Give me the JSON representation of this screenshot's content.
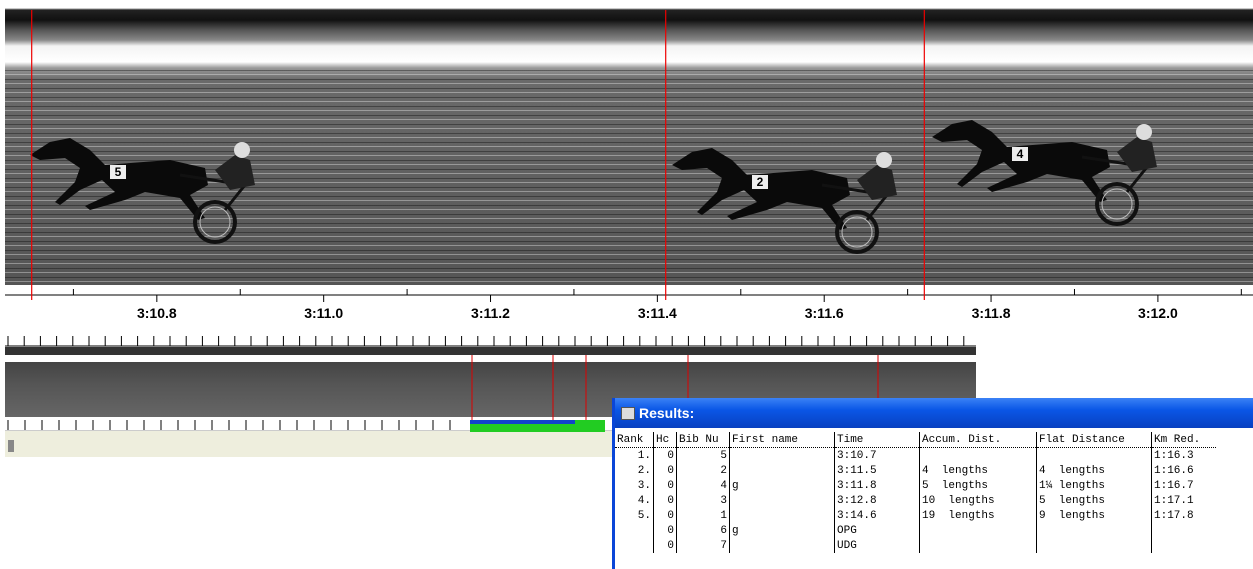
{
  "timeline": {
    "xlim": [
      190.618,
      192.114
    ],
    "ticks": [
      {
        "value": 190.8,
        "label": "3:10.8"
      },
      {
        "value": 191.0,
        "label": "3:11.0"
      },
      {
        "value": 191.2,
        "label": "3:11.2"
      },
      {
        "value": 191.4,
        "label": "3:11.4"
      },
      {
        "value": 191.6,
        "label": "3:11.6"
      },
      {
        "value": 191.8,
        "label": "3:11.8"
      },
      {
        "value": 192.0,
        "label": "3:12.0"
      }
    ],
    "minor_ticks": [
      190.7,
      190.9,
      191.1,
      191.3,
      191.5,
      191.7,
      191.9,
      192.1
    ],
    "finish_lines": [
      190.65,
      191.41,
      191.72
    ]
  },
  "horses": [
    {
      "bib": "5"
    },
    {
      "bib": "2"
    },
    {
      "bib": "4"
    }
  ],
  "results": {
    "title": "Results:",
    "columns": [
      "Rank",
      "Hc",
      "Bib Nu",
      "First name",
      "Time",
      "Accum. Dist.",
      "Flat Distance",
      "Km Red."
    ],
    "rows": [
      [
        "1.",
        "0",
        "5",
        "",
        "3:10.7",
        "",
        "",
        "1:16.3"
      ],
      [
        "2.",
        "0",
        "2",
        "",
        "3:11.5",
        "4  lengths",
        "4  lengths",
        "1:16.6"
      ],
      [
        "3.",
        "0",
        "4",
        "g",
        "3:11.8",
        "5  lengths",
        "1¼ lengths",
        "1:16.7"
      ],
      [
        "4.",
        "0",
        "3",
        "",
        "3:12.8",
        "10  lengths",
        "5  lengths",
        "1:17.1"
      ],
      [
        "5.",
        "0",
        "1",
        "",
        "3:14.6",
        "19  lengths",
        "9  lengths",
        "1:17.8"
      ],
      [
        "",
        "0",
        "6",
        "g",
        "OPG",
        "",
        "",
        ""
      ],
      [
        "",
        "0",
        "7",
        "",
        "UDG",
        "",
        "",
        ""
      ]
    ]
  }
}
